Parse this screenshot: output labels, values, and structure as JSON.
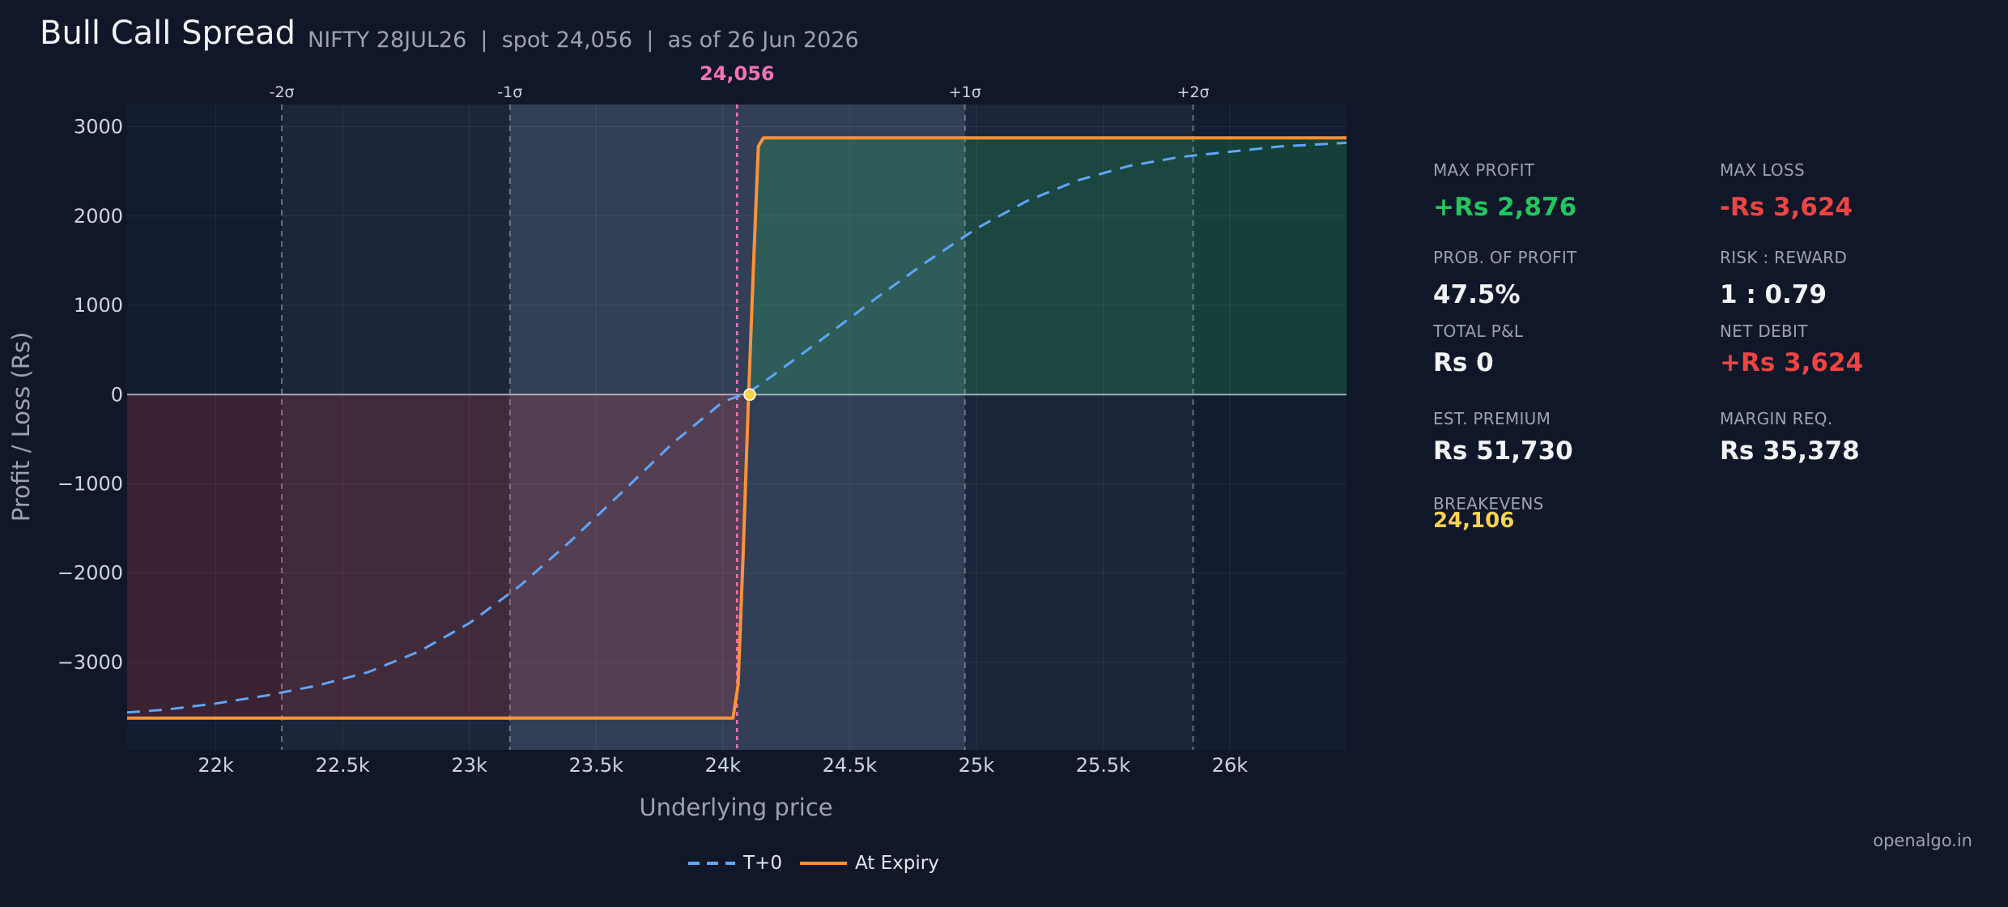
{
  "header": {
    "title": "Bull Call Spread",
    "subtitle": "NIFTY 28JUL26  |  spot 24,056  |  as of 26 Jun 2026"
  },
  "colors": {
    "background": "#0f1729",
    "t0_line": "#60a5fa",
    "expiry_line": "#fb923c",
    "spot_line": "#f472b6",
    "profit": "#22c55e",
    "loss": "#ef4444",
    "breakeven": "#fcd34d"
  },
  "stats": {
    "max_profit_label": "MAX PROFIT",
    "max_profit": "+Rs 2,876",
    "max_loss_label": "MAX LOSS",
    "max_loss": "-Rs 3,624",
    "pop_label": "PROB. OF PROFIT",
    "pop": "47.5%",
    "rr_label": "RISK : REWARD",
    "rr": "1 : 0.79",
    "total_pl_label": "TOTAL P&L",
    "total_pl": "Rs 0",
    "net_debit_label": "NET DEBIT",
    "net_debit": "+Rs 3,624",
    "premium_label": "EST. PREMIUM",
    "premium": "Rs 51,730",
    "margin_label": "MARGIN REQ.",
    "margin": "Rs 35,378",
    "breakevens_label": "BREAKEVENS",
    "breakevens": "24,106"
  },
  "footer": "openalgo.in",
  "chart_data": {
    "type": "line",
    "xlabel": "Underlying price",
    "ylabel": "Profit / Loss (Rs)",
    "xlim": [
      21650,
      26460
    ],
    "ylim": [
      -3980,
      3250
    ],
    "x_ticks": [
      22000,
      22500,
      23000,
      23500,
      24000,
      24500,
      25000,
      25500,
      26000
    ],
    "x_tick_labels": [
      "22k",
      "22.5k",
      "23k",
      "23.5k",
      "24k",
      "24.5k",
      "25k",
      "25.5k",
      "26k"
    ],
    "y_ticks": [
      3000,
      2000,
      1000,
      0,
      -1000,
      -2000,
      -3000
    ],
    "y_tick_labels": [
      "3000",
      "2000",
      "1000",
      "0",
      "−1000",
      "−2000",
      "−3000"
    ],
    "spot": 24056,
    "spot_label": "24,056",
    "breakeven": 24106,
    "sigma_lines": [
      {
        "label": "-2σ",
        "x": 22260
      },
      {
        "label": "-1σ",
        "x": 23160
      },
      {
        "label": "+1σ",
        "x": 24955
      },
      {
        "label": "+2σ",
        "x": 25855
      }
    ],
    "series": [
      {
        "name": "T+0",
        "style": "dashed",
        "x": [
          21650,
          21800,
          22000,
          22200,
          22400,
          22600,
          22800,
          23000,
          23200,
          23400,
          23600,
          23800,
          24000,
          24100,
          24200,
          24400,
          24600,
          24800,
          25000,
          25200,
          25400,
          25600,
          25800,
          26000,
          26200,
          26460
        ],
        "y": [
          -3560,
          -3530,
          -3460,
          -3370,
          -3260,
          -3110,
          -2880,
          -2560,
          -2140,
          -1640,
          -1100,
          -550,
          -80,
          20,
          220,
          640,
          1070,
          1480,
          1860,
          2170,
          2400,
          2560,
          2660,
          2720,
          2780,
          2820
        ]
      },
      {
        "name": "At Expiry",
        "style": "solid",
        "x": [
          21650,
          24040,
          24060,
          24080,
          24100,
          24120,
          24140,
          24160,
          26460
        ],
        "y": [
          -3624,
          -3624,
          -3250,
          -1800,
          -120,
          1400,
          2780,
          2876,
          2876
        ]
      }
    ],
    "legend_position": "bottom-center"
  }
}
